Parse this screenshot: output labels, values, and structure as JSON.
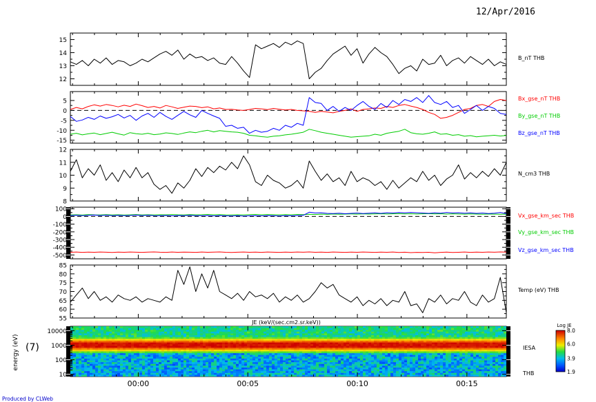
{
  "header": {
    "date": "12/Apr/2016",
    "panel_tag": "(7)",
    "credit": "Produced by CLWeb"
  },
  "colors": {
    "red": "#ff0000",
    "green": "#00cc00",
    "blue": "#0000ff",
    "black": "#000000"
  },
  "chart_data": [
    {
      "type": "line",
      "ylim": [
        11.5,
        15.5
      ],
      "yticks": [
        12,
        13,
        14,
        15
      ],
      "series": [
        {
          "name": "B_nT THB",
          "color": "#000000",
          "values": [
            13.3,
            13.1,
            13.4,
            13.0,
            13.5,
            13.2,
            13.6,
            13.1,
            13.4,
            13.3,
            13.0,
            13.2,
            13.5,
            13.3,
            13.6,
            13.9,
            14.1,
            13.8,
            14.2,
            13.5,
            13.9,
            13.6,
            13.7,
            13.4,
            13.6,
            13.2,
            13.1,
            13.7,
            13.2,
            12.6,
            12.1,
            14.6,
            14.3,
            14.5,
            14.7,
            14.4,
            14.8,
            14.6,
            14.9,
            14.7,
            12.0,
            12.5,
            12.8,
            13.4,
            13.9,
            14.2,
            14.5,
            13.8,
            14.3,
            13.2,
            13.9,
            14.4,
            14.0,
            13.7,
            13.1,
            12.4,
            12.8,
            13.0,
            12.6,
            13.5,
            13.1,
            13.2,
            13.8,
            13.0,
            13.4,
            13.6,
            13.2,
            13.7,
            13.4,
            13.1,
            13.5,
            13.0,
            13.3,
            13.1
          ]
        }
      ]
    },
    {
      "type": "line",
      "ylim": [
        -16.5,
        9.5
      ],
      "yticks": [
        -15,
        -10,
        -5,
        0,
        5
      ],
      "zero_line": true,
      "series": [
        {
          "name": "Bx_gse_nT THB",
          "color": "#ff0000",
          "values": [
            0.5,
            1.5,
            0.8,
            2.0,
            2.8,
            2.2,
            3.0,
            2.5,
            1.8,
            2.6,
            2.0,
            3.2,
            2.4,
            1.5,
            2.0,
            1.2,
            2.5,
            1.8,
            1.0,
            1.6,
            2.2,
            2.0,
            1.4,
            1.8,
            0.8,
            1.2,
            0.5,
            0.6,
            0.2,
            0.0,
            0.5,
            1.0,
            0.8,
            0.4,
            1.0,
            0.6,
            0.2,
            0.5,
            0.0,
            -0.2,
            -0.5,
            -1.0,
            -0.5,
            -0.8,
            -1.2,
            -0.5,
            0.0,
            0.8,
            -0.5,
            0.5,
            0.8,
            1.2,
            1.0,
            2.0,
            1.5,
            2.5,
            3.0,
            2.2,
            1.5,
            0.5,
            -1.0,
            -2.0,
            -4.0,
            -3.5,
            -2.5,
            -1.0,
            0.5,
            1.0,
            2.5,
            3.0,
            2.0,
            4.5,
            5.5,
            5.0
          ]
        },
        {
          "name": "By_gse_nT THB",
          "color": "#00cc00",
          "values": [
            -12.0,
            -11.5,
            -12.3,
            -11.8,
            -11.4,
            -12.2,
            -11.6,
            -11.0,
            -11.8,
            -12.4,
            -11.2,
            -11.7,
            -12.0,
            -11.5,
            -12.2,
            -11.9,
            -11.3,
            -11.6,
            -12.1,
            -11.4,
            -10.8,
            -11.2,
            -10.5,
            -10.0,
            -10.8,
            -10.2,
            -10.5,
            -10.8,
            -11.0,
            -11.5,
            -12.5,
            -12.8,
            -13.2,
            -13.5,
            -13.0,
            -12.8,
            -12.3,
            -12.0,
            -11.5,
            -11.0,
            -9.5,
            -10.2,
            -11.0,
            -11.5,
            -12.0,
            -12.5,
            -13.0,
            -13.5,
            -13.2,
            -13.0,
            -12.8,
            -12.0,
            -12.5,
            -11.5,
            -11.0,
            -10.5,
            -9.5,
            -11.2,
            -11.8,
            -12.0,
            -11.5,
            -10.8,
            -12.0,
            -11.8,
            -12.5,
            -12.2,
            -13.0,
            -12.7,
            -13.3,
            -13.0,
            -12.8,
            -12.5,
            -12.9,
            -12.6
          ]
        },
        {
          "name": "Bz_gse_nT THB",
          "color": "#0000ff",
          "values": [
            -3.0,
            -5.5,
            -4.8,
            -3.5,
            -4.5,
            -2.8,
            -4.0,
            -3.2,
            -2.0,
            -3.8,
            -2.5,
            -5.0,
            -2.8,
            -1.5,
            -3.5,
            -1.0,
            -3.0,
            -4.5,
            -2.5,
            -0.5,
            -2.2,
            -3.5,
            0.0,
            -1.5,
            -2.8,
            -4.0,
            -8.0,
            -7.5,
            -9.0,
            -8.5,
            -11.5,
            -10.0,
            -11.0,
            -10.5,
            -9.0,
            -10.0,
            -7.5,
            -8.5,
            -6.5,
            -7.5,
            6.5,
            4.0,
            3.5,
            0.0,
            2.0,
            -0.5,
            1.5,
            0.0,
            2.5,
            4.5,
            2.0,
            0.5,
            3.5,
            1.5,
            5.0,
            3.0,
            5.5,
            4.5,
            6.5,
            4.0,
            7.5,
            4.0,
            3.0,
            4.5,
            1.5,
            2.5,
            -1.5,
            0.5,
            2.5,
            0.0,
            2.0,
            1.0,
            -1.5,
            -2.0
          ]
        }
      ]
    },
    {
      "type": "line",
      "ylim": [
        8,
        12
      ],
      "yticks": [
        8,
        9,
        10,
        11,
        12
      ],
      "series": [
        {
          "name": "N_cm3 THB",
          "color": "#000000",
          "values": [
            10.3,
            11.2,
            9.8,
            10.5,
            10.0,
            10.8,
            9.6,
            10.2,
            9.5,
            10.4,
            9.8,
            10.6,
            9.8,
            10.2,
            9.3,
            8.9,
            9.2,
            8.6,
            9.4,
            9.0,
            9.6,
            10.5,
            9.9,
            10.6,
            10.2,
            10.7,
            10.4,
            11.0,
            10.5,
            11.5,
            10.8,
            9.5,
            9.2,
            10.0,
            9.6,
            9.4,
            9.0,
            9.2,
            9.6,
            9.0,
            11.1,
            10.3,
            9.6,
            10.1,
            9.5,
            9.8,
            9.2,
            10.3,
            9.5,
            9.8,
            9.6,
            9.2,
            9.5,
            8.9,
            9.6,
            9.0,
            9.4,
            9.8,
            9.5,
            10.3,
            9.6,
            10.0,
            9.2,
            9.7,
            10.0,
            10.8,
            9.7,
            10.2,
            9.8,
            10.3,
            9.9,
            10.5,
            10.0,
            11.0
          ]
        }
      ]
    },
    {
      "type": "line",
      "ylim": [
        -550,
        120
      ],
      "yticks": [
        -500,
        -400,
        -300,
        -200,
        -100,
        0,
        100
      ],
      "zero_line": true,
      "series": [
        {
          "name": "Vx_gse_km_sec THB",
          "color": "#ff0000",
          "values": [
            -465,
            -462,
            -466,
            -463,
            -465,
            -462,
            -464,
            -467,
            -463,
            -465,
            -462,
            -464,
            -466,
            -463,
            -461,
            -464,
            -466,
            -462,
            -465,
            -463,
            -464,
            -466,
            -462,
            -465,
            -463,
            -461,
            -465,
            -468,
            -464,
            -462,
            -465,
            -463,
            -466,
            -462,
            -464,
            -466,
            -463,
            -465,
            -462,
            -464,
            -461,
            -465,
            -463,
            -466,
            -462,
            -464,
            -466,
            -463,
            -465,
            -462,
            -464,
            -466,
            -463,
            -465,
            -462,
            -467,
            -464,
            -470,
            -466,
            -468,
            -465,
            -472,
            -466,
            -463,
            -468,
            -465,
            -462,
            -466,
            -463,
            -465,
            -462,
            -464,
            -461,
            -463
          ]
        },
        {
          "name": "Vy_gse_km_sec THB",
          "color": "#00cc00",
          "values": [
            20,
            22,
            18,
            24,
            21,
            19,
            23,
            20,
            22,
            18,
            21,
            24,
            20,
            22,
            19,
            23,
            21,
            25,
            22,
            20,
            24,
            21,
            23,
            26,
            22,
            24,
            21,
            20,
            22,
            19,
            24,
            26,
            22,
            25,
            23,
            21,
            24,
            22,
            26,
            23,
            28,
            25,
            30,
            27,
            32,
            29,
            31,
            33,
            30,
            34,
            31,
            33,
            35,
            32,
            34,
            36,
            33,
            35,
            32,
            34,
            36,
            33,
            35,
            31,
            34,
            32,
            30,
            33,
            31,
            29,
            32,
            30,
            28,
            30
          ]
        },
        {
          "name": "Vz_gse_km_sec THB",
          "color": "#0000ff",
          "values": [
            12,
            15,
            10,
            14,
            18,
            12,
            16,
            11,
            14,
            10,
            13,
            17,
            12,
            15,
            11,
            9,
            13,
            8,
            12,
            10,
            14,
            11,
            9,
            12,
            7,
            10,
            8,
            6,
            9,
            5,
            8,
            10,
            7,
            11,
            9,
            6,
            10,
            8,
            12,
            15,
            55,
            45,
            48,
            40,
            38,
            42,
            35,
            40,
            44,
            38,
            42,
            46,
            40,
            48,
            44,
            50,
            46,
            52,
            48,
            44,
            40,
            46,
            42,
            50,
            45,
            48,
            42,
            46,
            40,
            44,
            38,
            42,
            50,
            36
          ]
        }
      ]
    },
    {
      "type": "line",
      "ylim": [
        55,
        85
      ],
      "yticks": [
        55,
        60,
        65,
        70,
        75,
        80,
        85
      ],
      "series": [
        {
          "name": "Temp (eV) THB",
          "color": "#000000",
          "values": [
            64,
            68,
            72,
            66,
            70,
            65,
            67,
            64,
            68,
            66,
            65,
            67,
            64,
            66,
            65,
            64,
            67,
            65,
            82,
            74,
            84,
            70,
            80,
            72,
            82,
            70,
            68,
            66,
            69,
            65,
            70,
            67,
            68,
            66,
            69,
            64,
            67,
            65,
            68,
            64,
            66,
            70,
            75,
            72,
            74,
            68,
            66,
            64,
            67,
            62,
            65,
            63,
            66,
            62,
            65,
            64,
            70,
            62,
            63,
            58,
            66,
            64,
            68,
            63,
            66,
            65,
            70,
            64,
            62,
            68,
            64,
            66,
            78,
            58
          ]
        }
      ]
    },
    {
      "type": "heatmap",
      "title": "JE (keV/(sec.cm2.sr.keV))",
      "ylabel": "energy (eV)",
      "scale": "log",
      "ylim": [
        7,
        20000
      ],
      "yticks": [
        "10",
        "100",
        "1000",
        "10000"
      ],
      "instrument": "IESA",
      "colorbar": {
        "label": "Log JE",
        "ticks": [
          "8.0",
          "6.0",
          "3.9",
          "1.9"
        ],
        "range": [
          1.9,
          8.0
        ]
      }
    }
  ],
  "xaxis": {
    "ticks": [
      "00:00",
      "00:05",
      "00:10",
      "00:15"
    ],
    "tick_positions_min": [
      0,
      5,
      10,
      15
    ],
    "range_min": [
      -3.1,
      16.8
    ]
  },
  "spacecraft": "THB"
}
